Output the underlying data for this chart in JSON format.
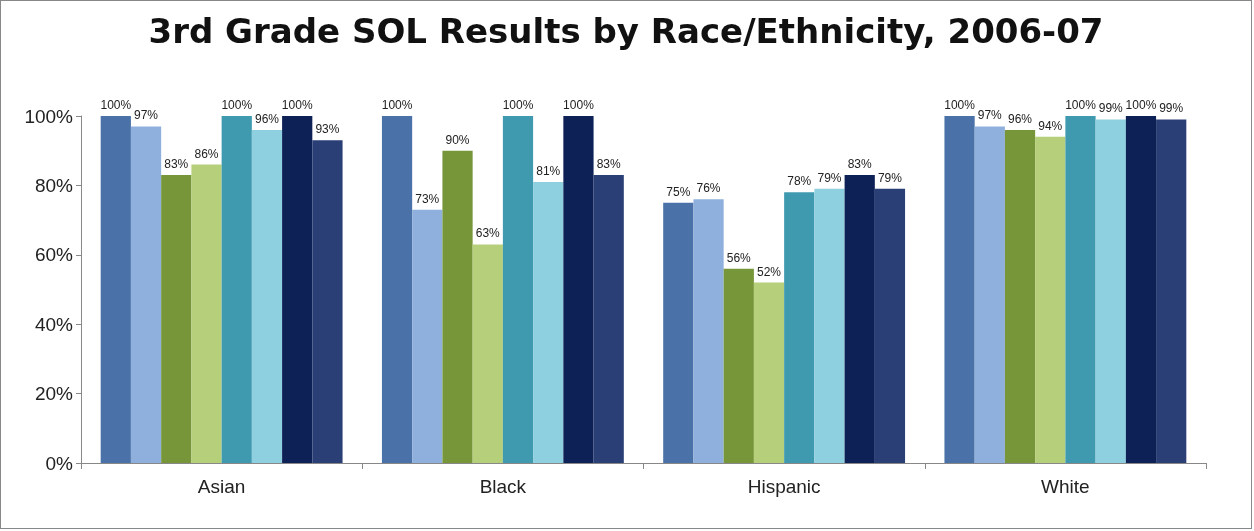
{
  "chart_data": {
    "type": "bar",
    "title": "3rd Grade SOL Results by Race/Ethnicity, 2006-07",
    "categories": [
      "Asian",
      "Black",
      "Hispanic",
      "White"
    ],
    "series": [
      {
        "color": "#4a72a8",
        "values": [
          100,
          100,
          75,
          100
        ],
        "value_labels": [
          "100%",
          "100%",
          "75%",
          "100%"
        ]
      },
      {
        "color": "#8fb0dc",
        "values": [
          97,
          73,
          76,
          97
        ],
        "value_labels": [
          "97%",
          "73%",
          "76%",
          "97%"
        ]
      },
      {
        "color": "#77963a",
        "values": [
          83,
          90,
          56,
          96
        ],
        "value_labels": [
          "83%",
          "90%",
          "56%",
          "96%"
        ]
      },
      {
        "color": "#b5cf7a",
        "values": [
          86,
          63,
          52,
          94
        ],
        "value_labels": [
          "86%",
          "63%",
          "52%",
          "94%"
        ]
      },
      {
        "color": "#3f9ab0",
        "values": [
          100,
          100,
          78,
          100
        ],
        "value_labels": [
          "100%",
          "100%",
          "78%",
          "100%"
        ]
      },
      {
        "color": "#8fd0e0",
        "values": [
          96,
          81,
          79,
          99
        ],
        "value_labels": [
          "96%",
          "81%",
          "79%",
          "99%"
        ]
      },
      {
        "color": "#0d2157",
        "values": [
          100,
          100,
          83,
          100
        ],
        "value_labels": [
          "100%",
          "100%",
          "83%",
          "100%"
        ]
      },
      {
        "color": "#2a3f75",
        "values": [
          93,
          83,
          79,
          99
        ],
        "value_labels": [
          "93%",
          "83%",
          "79%",
          "99%"
        ]
      }
    ],
    "ylim": [
      0,
      100
    ],
    "yticks": [
      {
        "value": 0,
        "label": "0%"
      },
      {
        "value": 20,
        "label": "20%"
      },
      {
        "value": 40,
        "label": "40%"
      },
      {
        "value": 60,
        "label": "60%"
      },
      {
        "value": 80,
        "label": "80%"
      },
      {
        "value": 100,
        "label": "100%"
      }
    ],
    "grid": false
  }
}
